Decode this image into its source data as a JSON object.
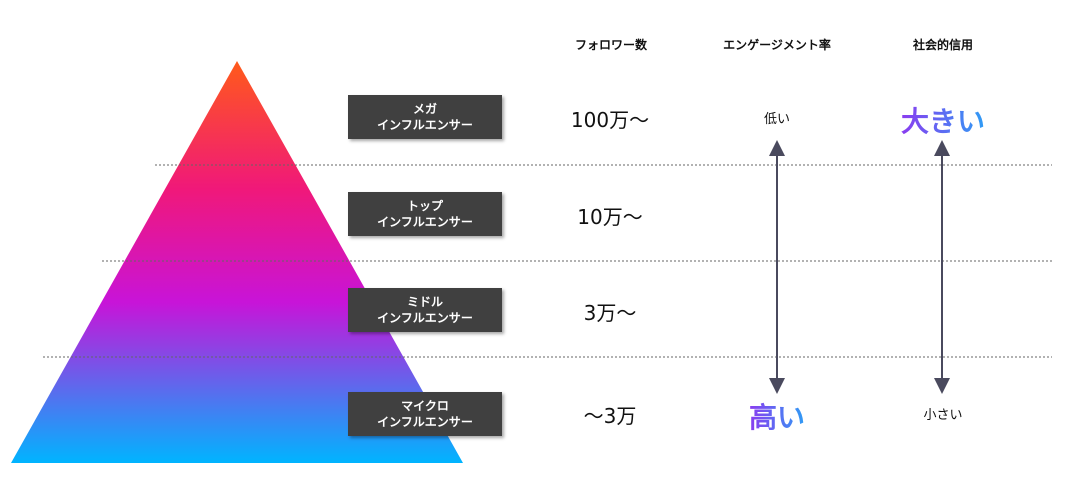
{
  "headers": {
    "followers": "フォロワー数",
    "engagement": "エンゲージメント率",
    "credibility": "社会的信用"
  },
  "tiers": [
    {
      "line1": "メガ",
      "line2": "インフルエンサー",
      "followers": "100万〜"
    },
    {
      "line1": "トップ",
      "line2": "インフルエンサー",
      "followers": "10万〜"
    },
    {
      "line1": "ミドル",
      "line2": "インフルエンサー",
      "followers": "3万〜"
    },
    {
      "line1": "マイクロ",
      "line2": "インフルエンサー",
      "followers": "〜3万"
    }
  ],
  "engagement": {
    "top": "低い",
    "bottom": "高い"
  },
  "credibility": {
    "top": "大きい",
    "bottom": "小さい"
  },
  "colors": {
    "pyramid_top": "#ff5a1a",
    "pyramid_mid_upper": "#f0187a",
    "pyramid_mid": "#c814d8",
    "pyramid_bottom": "#00b4ff",
    "label_bg": "#404040",
    "arrow": "#4a4a5e",
    "accent_text_start": "#8a3cf0",
    "accent_text_end": "#2f9cf5"
  }
}
